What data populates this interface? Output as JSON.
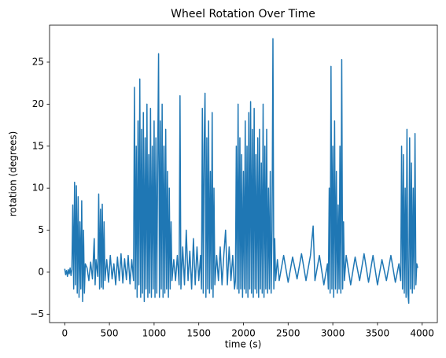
{
  "chart_data": {
    "type": "line",
    "title": "Wheel Rotation Over Time",
    "x_label": "time (s)",
    "y_label": "rotation (degrees)",
    "color": "#1f77b4",
    "x": [
      0,
      10,
      20,
      30,
      40,
      50,
      60,
      70,
      80,
      90,
      100,
      110,
      120,
      130,
      140,
      150,
      160,
      170,
      180,
      190,
      200,
      210,
      220,
      230,
      250,
      270,
      290,
      310,
      330,
      340,
      350,
      370,
      380,
      390,
      400,
      410,
      420,
      430,
      440,
      450,
      470,
      490,
      510,
      530,
      550,
      570,
      590,
      610,
      630,
      650,
      670,
      690,
      710,
      730,
      750,
      770,
      780,
      790,
      800,
      810,
      820,
      830,
      840,
      850,
      860,
      870,
      880,
      890,
      900,
      910,
      920,
      930,
      940,
      950,
      960,
      970,
      980,
      990,
      1000,
      1010,
      1020,
      1030,
      1040,
      1050,
      1060,
      1070,
      1080,
      1090,
      1100,
      1110,
      1120,
      1130,
      1140,
      1150,
      1160,
      1170,
      1180,
      1190,
      1200,
      1220,
      1240,
      1260,
      1280,
      1290,
      1300,
      1320,
      1340,
      1360,
      1380,
      1400,
      1420,
      1440,
      1460,
      1480,
      1500,
      1520,
      1530,
      1540,
      1550,
      1560,
      1570,
      1580,
      1590,
      1600,
      1610,
      1620,
      1630,
      1640,
      1650,
      1660,
      1670,
      1680,
      1700,
      1720,
      1740,
      1760,
      1780,
      1800,
      1820,
      1840,
      1860,
      1880,
      1900,
      1910,
      1920,
      1930,
      1940,
      1950,
      1960,
      1970,
      1980,
      1990,
      2000,
      2010,
      2020,
      2030,
      2040,
      2050,
      2060,
      2070,
      2080,
      2090,
      2100,
      2110,
      2120,
      2130,
      2140,
      2150,
      2160,
      2170,
      2180,
      2190,
      2200,
      2210,
      2220,
      2230,
      2240,
      2250,
      2260,
      2270,
      2280,
      2290,
      2300,
      2310,
      2320,
      2330,
      2340,
      2350,
      2360,
      2380,
      2400,
      2450,
      2500,
      2550,
      2600,
      2650,
      2700,
      2750,
      2780,
      2800,
      2850,
      2900,
      2940,
      2950,
      2960,
      2970,
      2980,
      2990,
      3000,
      3010,
      3020,
      3030,
      3040,
      3050,
      3060,
      3070,
      3080,
      3090,
      3100,
      3110,
      3120,
      3130,
      3150,
      3200,
      3250,
      3300,
      3350,
      3400,
      3450,
      3500,
      3550,
      3600,
      3650,
      3700,
      3740,
      3760,
      3770,
      3780,
      3790,
      3800,
      3810,
      3820,
      3830,
      3840,
      3850,
      3860,
      3870,
      3880,
      3890,
      3900,
      3910,
      3920,
      3930,
      3940,
      3950
    ],
    "values": [
      0.4,
      -0.3,
      0.2,
      -0.5,
      0.3,
      -0.2,
      0.5,
      -0.4,
      0.3,
      8,
      -2,
      10.7,
      -1.5,
      10.3,
      -2.5,
      9,
      -3,
      6,
      -2,
      8.5,
      -3.5,
      5,
      -2.5,
      1,
      0.5,
      -1,
      1.2,
      -0.8,
      4,
      -1.5,
      1.5,
      -0.5,
      9.3,
      -2,
      7.5,
      -1.8,
      8.1,
      -2,
      6,
      -1,
      1.5,
      -1.2,
      2,
      -0.8,
      1,
      -1.5,
      1.8,
      -1,
      2.2,
      -1.3,
      1.6,
      -0.9,
      2,
      -1.4,
      1.5,
      -1,
      22,
      -2,
      15,
      -3,
      18,
      -1.5,
      23,
      -3,
      17,
      -2.5,
      19,
      -3.5,
      16,
      -2,
      20,
      -3,
      14,
      -2.5,
      19.5,
      -3,
      15,
      -2,
      18,
      -3,
      16,
      -2.5,
      13,
      26,
      -3,
      18,
      -2,
      20,
      -3,
      15,
      -2.5,
      17,
      -2,
      12,
      -3,
      10,
      -2,
      6,
      -1,
      1.5,
      -1,
      2,
      -1.5,
      21,
      -2,
      3,
      -1.5,
      5,
      -1,
      2.5,
      -2,
      4,
      -1.5,
      3,
      -1,
      2,
      -2,
      19.5,
      -2.5,
      15,
      21.3,
      -3,
      16,
      -2,
      18,
      -2.5,
      12,
      -2,
      19,
      -3,
      10,
      -1.5,
      2,
      -1,
      3,
      -1.5,
      2,
      5,
      -1.5,
      3,
      -1,
      2,
      -2,
      -1,
      15,
      -2,
      20,
      -2.5,
      16,
      -2,
      14,
      -3,
      12,
      -2,
      18,
      -2.5,
      15,
      -3,
      19,
      -2,
      20.3,
      -2.5,
      17,
      -3,
      19.5,
      -2,
      14,
      -2.5,
      16,
      -3,
      17,
      -2,
      13,
      -2.5,
      20,
      -3,
      15,
      -2,
      17,
      -2.5,
      10,
      -2,
      12,
      -2.5,
      5,
      27.8,
      -2,
      4,
      -1,
      1.5,
      -1,
      2,
      -1.2,
      1.8,
      -0.8,
      2.2,
      -1,
      2,
      5.5,
      -1,
      2,
      -1.5,
      1,
      -2,
      10,
      -2.5,
      24.5,
      -2,
      15,
      -3,
      18,
      -2,
      12,
      -2.5,
      8,
      -2,
      15,
      -2.5,
      25.3,
      -2,
      6,
      -1,
      2,
      -1.5,
      1.8,
      -1,
      2.2,
      -1.2,
      2,
      -1.5,
      1.5,
      -1,
      2,
      -1.2,
      1,
      -1,
      15,
      -2,
      14,
      -2.5,
      10,
      -3,
      17,
      -2.5,
      -3.7,
      16,
      -2,
      13,
      -2.5,
      10,
      -2,
      16.5,
      -1.5,
      1,
      0.5
    ],
    "xlim": [
      -170,
      4170
    ],
    "ylim": [
      -6,
      29.4
    ],
    "xticks": [
      0,
      500,
      1000,
      1500,
      2000,
      2500,
      3000,
      3500,
      4000
    ],
    "yticks": [
      {
        "value": -5,
        "label": "−5"
      },
      0,
      5,
      10,
      15,
      20,
      25
    ]
  }
}
